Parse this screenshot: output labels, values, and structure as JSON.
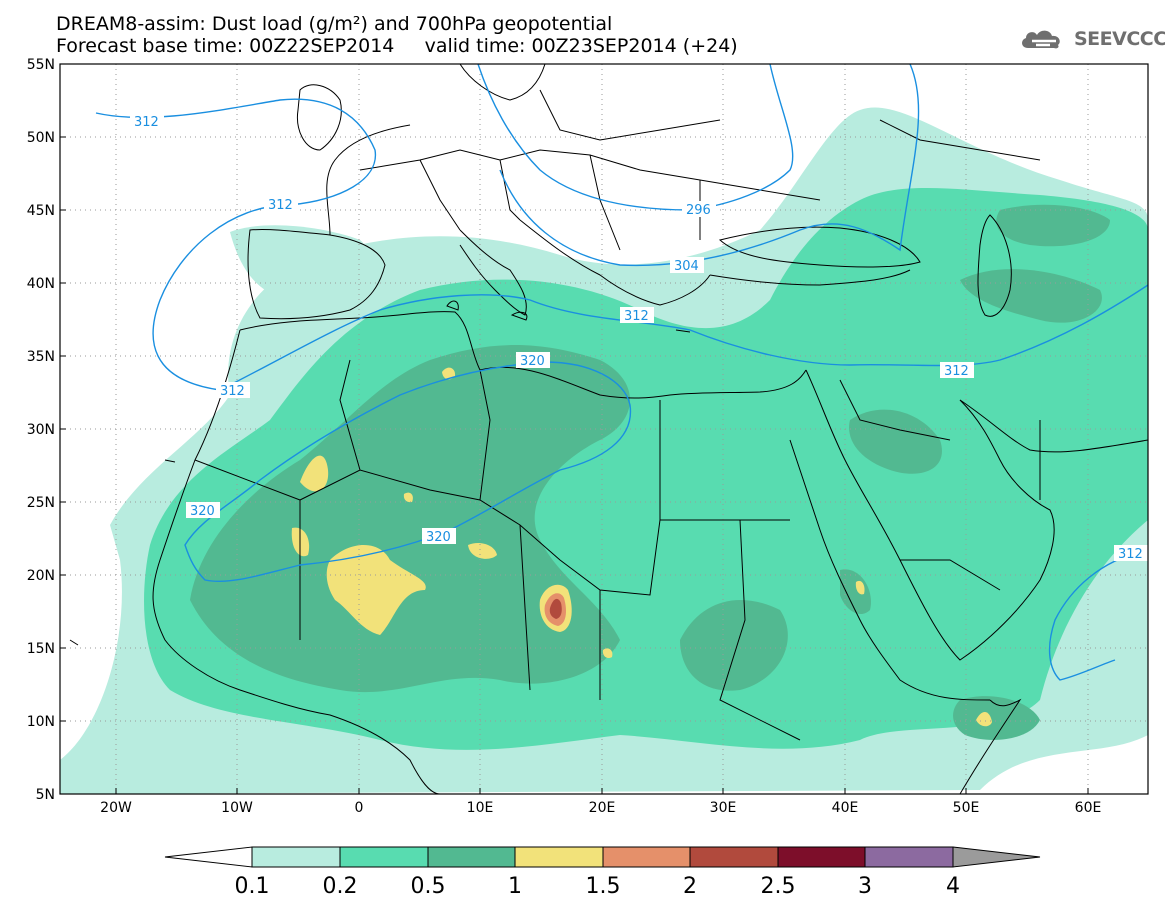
{
  "header": {
    "title_line1": "DREAM8-assim: Dust load (g/m²) and 700hPa geopotential",
    "title_line2": "Forecast base time: 00Z22SEP2014     valid time: 00Z23SEP2014 (+24)",
    "logo_text": "SEEVCCC"
  },
  "map": {
    "lat_labels": [
      "55N",
      "50N",
      "45N",
      "40N",
      "35N",
      "30N",
      "25N",
      "20N",
      "15N",
      "10N",
      "5N"
    ],
    "lon_labels": [
      "20W",
      "10W",
      "0",
      "10E",
      "20E",
      "30E",
      "40E",
      "50E",
      "60E"
    ],
    "contour_labels": [
      "312",
      "312",
      "312",
      "320",
      "320",
      "320",
      "312",
      "296",
      "304",
      "312",
      "312"
    ],
    "colors": {
      "geopotential": "#1a8fe0",
      "coast": "#000000",
      "grid": "#9a9a9a"
    }
  },
  "colorbar": {
    "levels": [
      "0.1",
      "0.2",
      "0.5",
      "1",
      "1.5",
      "2",
      "2.5",
      "3",
      "4"
    ],
    "colors": [
      "#b8ecdf",
      "#58dcb0",
      "#52b991",
      "#f2e27a",
      "#e5906a",
      "#b14a3d",
      "#7d0e2a",
      "#8c6aa0",
      "#9b9b9b"
    ],
    "under_color": "#ffffff"
  }
}
